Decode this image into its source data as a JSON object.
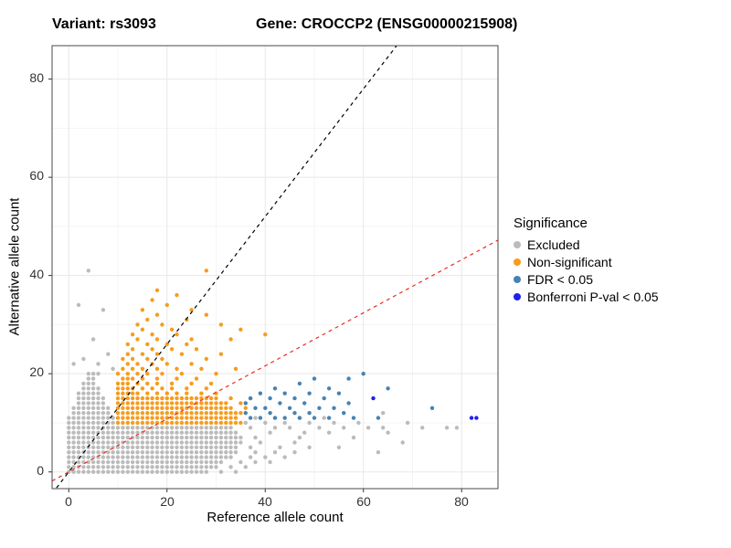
{
  "chart_data": {
    "type": "scatter",
    "title_left": "Variant: rs3093",
    "title_right": "Gene: CROCCP2 (ENSG00000215908)",
    "xlabel": "Reference allele count",
    "ylabel": "Alternative allele count",
    "axes": {
      "xmin": -3.4,
      "xmax": 87.4,
      "ymin": -3.4,
      "ymax": 86.8,
      "x_ticks": [
        0,
        20,
        40,
        60,
        80
      ],
      "y_ticks": [
        0,
        20,
        40,
        60,
        80
      ],
      "x_minor": [
        10,
        30,
        50,
        70
      ],
      "y_minor": [
        10,
        30,
        50,
        70
      ]
    },
    "grid": {
      "major_color": "#E8E8E8",
      "minor_color": "#F4F4F4"
    },
    "panel_border_color": "#4A4A4A",
    "tick_color": "#333333",
    "lines": [
      {
        "name": "black-dashed-line",
        "color": "#000000",
        "slope": 1.3,
        "intercept": 0,
        "dash": "4 4"
      },
      {
        "name": "red-dashed-line",
        "color": "#EE2A21",
        "slope": 0.54,
        "intercept": 0,
        "dash": "4 4"
      }
    ],
    "point_encoding": "row_runs entries are [y, x_start, x_end, [extra_x_values]]; points entries are [x, y]",
    "series": [
      {
        "name": "Excluded",
        "color": "#BBBBBB",
        "row_runs": [
          [
            0,
            0,
            28,
            [
              31,
              34
            ]
          ],
          [
            1,
            0,
            30,
            [
              33,
              36
            ]
          ],
          [
            2,
            0,
            31,
            [
              35,
              38,
              41
            ]
          ],
          [
            3,
            0,
            33,
            [
              37,
              40,
              44
            ]
          ],
          [
            4,
            0,
            34,
            [
              38,
              42,
              46,
              63
            ]
          ],
          [
            5,
            0,
            34,
            [
              37,
              43,
              49,
              55
            ]
          ],
          [
            6,
            0,
            35,
            [
              39,
              46,
              68
            ]
          ],
          [
            7,
            0,
            35,
            [
              38,
              47,
              58
            ]
          ],
          [
            8,
            0,
            34,
            [
              41,
              48,
              53,
              65
            ]
          ],
          [
            9,
            0,
            33,
            [
              37,
              42,
              45,
              51,
              56,
              61,
              64,
              72
            ]
          ],
          [
            10,
            0,
            9,
            [
              36,
              40,
              44,
              49,
              54,
              59
            ]
          ],
          [
            11,
            0,
            9,
            [
              38,
              42,
              47,
              52
            ]
          ],
          [
            12,
            1,
            8,
            [
              64
            ]
          ],
          [
            13,
            1,
            8,
            []
          ],
          [
            14,
            2,
            7,
            []
          ],
          [
            15,
            2,
            7,
            []
          ],
          [
            16,
            2,
            6,
            []
          ],
          [
            17,
            3,
            6,
            []
          ],
          [
            18,
            3,
            5,
            []
          ],
          [
            19,
            4,
            5,
            []
          ],
          [
            20,
            4,
            6,
            []
          ]
        ],
        "points": [
          [
            4,
            41
          ],
          [
            2,
            34
          ],
          [
            7,
            33
          ],
          [
            5,
            27
          ],
          [
            8,
            24
          ],
          [
            3,
            23
          ],
          [
            1,
            22
          ],
          [
            6,
            22
          ],
          [
            9,
            21
          ],
          [
            77,
            9
          ],
          [
            79,
            9
          ],
          [
            69,
            10
          ]
        ]
      },
      {
        "name": "Non-significant",
        "color": "#F79C1D",
        "row_runs": [
          [
            10,
            10,
            35,
            []
          ],
          [
            11,
            10,
            34,
            []
          ],
          [
            12,
            10,
            35,
            []
          ],
          [
            13,
            10,
            33,
            [
              36
            ]
          ],
          [
            14,
            10,
            32,
            [
              35
            ]
          ],
          [
            15,
            10,
            30,
            [
              33,
              37
            ]
          ]
        ],
        "points": [
          [
            10,
            16
          ],
          [
            11,
            16
          ],
          [
            12,
            16
          ],
          [
            13,
            16
          ],
          [
            14,
            16
          ],
          [
            16,
            16
          ],
          [
            18,
            16
          ],
          [
            20,
            16
          ],
          [
            22,
            16
          ],
          [
            24,
            16
          ],
          [
            27,
            16
          ],
          [
            30,
            16
          ],
          [
            10,
            17
          ],
          [
            11,
            17
          ],
          [
            12,
            17
          ],
          [
            13,
            17
          ],
          [
            15,
            17
          ],
          [
            17,
            17
          ],
          [
            19,
            17
          ],
          [
            21,
            17
          ],
          [
            24,
            17
          ],
          [
            28,
            17
          ],
          [
            10,
            18
          ],
          [
            11,
            18
          ],
          [
            12,
            18
          ],
          [
            14,
            18
          ],
          [
            16,
            18
          ],
          [
            18,
            18
          ],
          [
            21,
            18
          ],
          [
            25,
            18
          ],
          [
            29,
            18
          ],
          [
            11,
            19
          ],
          [
            12,
            19
          ],
          [
            13,
            19
          ],
          [
            15,
            19
          ],
          [
            18,
            19
          ],
          [
            22,
            19
          ],
          [
            26,
            19
          ],
          [
            10,
            20
          ],
          [
            12,
            20
          ],
          [
            14,
            20
          ],
          [
            16,
            20
          ],
          [
            19,
            20
          ],
          [
            23,
            20
          ],
          [
            30,
            20
          ],
          [
            11,
            21
          ],
          [
            13,
            21
          ],
          [
            15,
            21
          ],
          [
            18,
            21
          ],
          [
            22,
            21
          ],
          [
            27,
            21
          ],
          [
            34,
            21
          ],
          [
            12,
            22
          ],
          [
            14,
            22
          ],
          [
            17,
            22
          ],
          [
            20,
            22
          ],
          [
            25,
            22
          ],
          [
            11,
            23
          ],
          [
            13,
            23
          ],
          [
            16,
            23
          ],
          [
            19,
            23
          ],
          [
            28,
            23
          ],
          [
            12,
            24
          ],
          [
            15,
            24
          ],
          [
            18,
            24
          ],
          [
            23,
            24
          ],
          [
            31,
            24
          ],
          [
            13,
            25
          ],
          [
            17,
            25
          ],
          [
            21,
            25
          ],
          [
            26,
            25
          ],
          [
            12,
            26
          ],
          [
            16,
            26
          ],
          [
            20,
            26
          ],
          [
            24,
            26
          ],
          [
            14,
            27
          ],
          [
            18,
            27
          ],
          [
            25,
            27
          ],
          [
            33,
            27
          ],
          [
            13,
            28
          ],
          [
            17,
            28
          ],
          [
            22,
            28
          ],
          [
            40,
            28
          ],
          [
            15,
            29
          ],
          [
            21,
            29
          ],
          [
            35,
            29
          ],
          [
            14,
            30
          ],
          [
            19,
            30
          ],
          [
            31,
            30
          ],
          [
            16,
            31
          ],
          [
            24,
            31
          ],
          [
            18,
            32
          ],
          [
            28,
            32
          ],
          [
            15,
            33
          ],
          [
            25,
            33
          ],
          [
            20,
            34
          ],
          [
            17,
            35
          ],
          [
            22,
            36
          ],
          [
            18,
            37
          ],
          [
            28,
            41
          ]
        ]
      },
      {
        "name": "FDR < 0.05",
        "color": "#4682B4",
        "row_runs": [],
        "points": [
          [
            36,
            12
          ],
          [
            36,
            14
          ],
          [
            37,
            11
          ],
          [
            37,
            15
          ],
          [
            38,
            13
          ],
          [
            39,
            11
          ],
          [
            39,
            16
          ],
          [
            40,
            13
          ],
          [
            41,
            12
          ],
          [
            41,
            15
          ],
          [
            42,
            11
          ],
          [
            42,
            17
          ],
          [
            43,
            14
          ],
          [
            44,
            11
          ],
          [
            44,
            16
          ],
          [
            45,
            13
          ],
          [
            46,
            12
          ],
          [
            46,
            15
          ],
          [
            47,
            11
          ],
          [
            47,
            18
          ],
          [
            48,
            14
          ],
          [
            49,
            12
          ],
          [
            49,
            16
          ],
          [
            50,
            11
          ],
          [
            50,
            19
          ],
          [
            51,
            13
          ],
          [
            52,
            15
          ],
          [
            53,
            11
          ],
          [
            53,
            17
          ],
          [
            54,
            13
          ],
          [
            55,
            16
          ],
          [
            56,
            12
          ],
          [
            57,
            14
          ],
          [
            57,
            19
          ],
          [
            58,
            11
          ],
          [
            60,
            20
          ],
          [
            63,
            11
          ],
          [
            65,
            17
          ],
          [
            74,
            13
          ]
        ]
      },
      {
        "name": "Bonferroni P-val < 0.05",
        "color": "#2020EE",
        "row_runs": [],
        "points": [
          [
            62,
            15
          ],
          [
            82,
            11
          ],
          [
            83,
            11
          ]
        ]
      }
    ],
    "legend": {
      "title": "Significance",
      "items": [
        {
          "label": "Excluded",
          "series": 0
        },
        {
          "label": "Non-significant",
          "series": 1
        },
        {
          "label": "FDR < 0.05",
          "series": 2
        },
        {
          "label": "Bonferroni P-val < 0.05",
          "series": 3
        }
      ]
    }
  }
}
